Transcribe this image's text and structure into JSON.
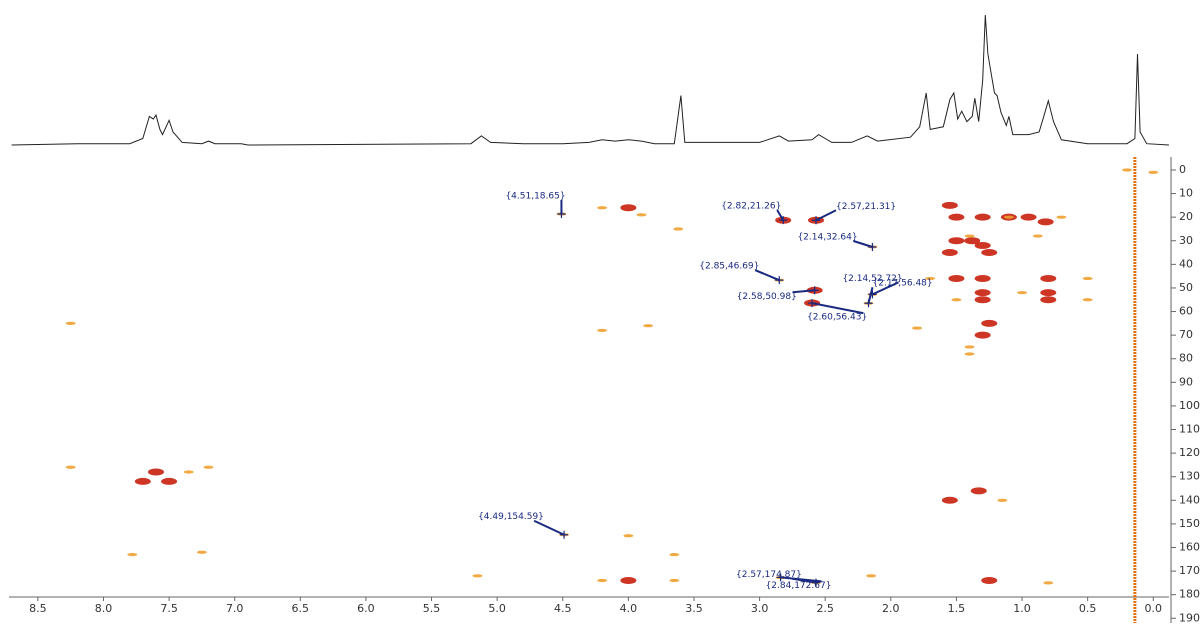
{
  "chart_data": {
    "type": "nmr2d",
    "xlim": [
      8.72,
      -0.12
    ],
    "ylim": [
      -5.5,
      192
    ],
    "xticks": [
      {
        "value": 8.5,
        "label": "8.5"
      },
      {
        "value": 8,
        "label": "8.0"
      },
      7.5,
      {
        "value": 7,
        "label": "7.0"
      },
      6.5,
      {
        "value": 6,
        "label": "6.0"
      },
      5.5,
      {
        "value": 5,
        "label": "5.0"
      },
      4.5,
      {
        "value": 4,
        "label": "4.0"
      },
      3.5,
      {
        "value": 3,
        "label": "3.0"
      },
      2.5,
      {
        "value": 2,
        "label": "2.0"
      },
      1.5,
      {
        "value": 1,
        "label": "1.0"
      },
      0.5,
      {
        "value": 0,
        "label": "0.0"
      }
    ],
    "yticks": [
      0,
      10,
      20,
      30,
      40,
      50,
      60,
      70,
      80,
      90,
      100,
      110,
      120,
      130,
      140,
      150,
      160,
      170,
      180,
      190
    ],
    "trace": {
      "color": "#222222",
      "x": [
        8.7,
        8.2,
        7.8,
        7.7,
        7.65,
        7.62,
        7.6,
        7.57,
        7.55,
        7.5,
        7.47,
        7.4,
        7.25,
        7.2,
        7.15,
        6.95,
        6.9,
        5.2,
        5.12,
        5.05,
        4.8,
        4.5,
        4.3,
        4.2,
        4.1,
        4.0,
        3.9,
        3.8,
        3.65,
        3.6,
        3.57,
        3.0,
        2.85,
        2.78,
        2.6,
        2.55,
        2.45,
        2.3,
        2.18,
        2.1,
        1.85,
        1.78,
        1.73,
        1.7,
        1.6,
        1.55,
        1.52,
        1.49,
        1.46,
        1.42,
        1.38,
        1.36,
        1.33,
        1.3,
        1.28,
        1.26,
        1.24,
        1.21,
        1.19,
        1.16,
        1.12,
        1.1,
        1.07,
        0.95,
        0.87,
        0.84,
        0.8,
        0.76,
        0.7,
        0.5,
        0.2,
        0.14,
        0.12,
        0.1,
        0.05,
        -0.12
      ],
      "values": [
        0,
        1,
        1,
        5,
        22,
        20,
        23,
        12,
        8,
        19,
        10,
        2,
        1,
        3,
        1,
        1,
        0,
        1,
        7,
        2,
        1,
        1,
        2,
        4,
        3,
        4,
        3,
        1,
        1,
        38,
        2,
        2,
        7,
        3,
        4,
        8,
        2,
        2,
        7,
        3,
        6,
        14,
        40,
        12,
        14,
        35,
        40,
        20,
        26,
        18,
        22,
        36,
        18,
        50,
        100,
        70,
        58,
        40,
        38,
        25,
        15,
        22,
        8,
        8,
        10,
        20,
        34,
        18,
        4,
        1,
        1,
        5,
        70,
        10,
        1,
        0
      ]
    },
    "vertical_line": {
      "x": 0.14,
      "color": "#e07010"
    },
    "series": [
      {
        "color": "#c8200c",
        "x": [
          2.82,
          2.57,
          4.0,
          1.55,
          1.3,
          1.5,
          1.1,
          0.95,
          0.82,
          1.5,
          1.38,
          1.3,
          1.25,
          1.5,
          1.3,
          0.8,
          1.3,
          1.3,
          0.8,
          0.8,
          1.25,
          1.3,
          7.6,
          7.7,
          7.5,
          1.55,
          1.33,
          4.0,
          1.25,
          2.58,
          2.6,
          1.55
        ],
        "values": [
          21.3,
          21.3,
          16,
          15,
          20,
          20,
          20,
          20,
          22,
          30,
          30,
          32,
          35,
          46,
          46,
          46,
          52,
          55,
          52,
          55,
          65,
          70,
          128,
          132,
          132,
          140,
          136,
          174,
          174,
          51,
          56.4,
          35
        ]
      },
      {
        "color": "#f0a030",
        "x": [
          2.14,
          4.2,
          3.9,
          1.4,
          0.7,
          0.88,
          1.7,
          1.0,
          0.5,
          0.5,
          1.5,
          1.4,
          1.15,
          4.2,
          3.85,
          7.35,
          7.2,
          8.25,
          1.1,
          4.49,
          4.0,
          4.2,
          3.65,
          2.84,
          2.57,
          2.15,
          3.62,
          3.65,
          0.2,
          0.0,
          4.51,
          2.85,
          2.17,
          2.14,
          8.25,
          7.78,
          7.25,
          5.15,
          0.8,
          1.8,
          1.4
        ],
        "values": [
          32.6,
          16,
          19,
          28,
          20,
          28,
          46,
          52,
          46,
          55,
          55,
          75,
          140,
          68,
          66,
          128,
          126,
          65,
          20,
          154.6,
          155,
          174,
          174,
          172.7,
          174.9,
          172,
          25,
          163,
          0,
          1,
          18.65,
          46.7,
          56.5,
          52.7,
          126,
          163,
          162,
          172,
          175,
          67,
          78
        ]
      }
    ],
    "annotations": [
      {
        "label": "{4.51,18.65}",
        "x": 4.51,
        "y": 18.65
      },
      {
        "label": "{2.82,21.26}",
        "x": 2.82,
        "y": 21.26
      },
      {
        "label": "{2.57,21.31}",
        "x": 2.57,
        "y": 21.31
      },
      {
        "label": "{2.14,32.64}",
        "x": 2.14,
        "y": 32.64
      },
      {
        "label": "{2.85,46.69}",
        "x": 2.85,
        "y": 46.69
      },
      {
        "label": "{2.14,52.72}",
        "x": 2.14,
        "y": 52.72
      },
      {
        "label": "{2.17,56.48}",
        "x": 2.17,
        "y": 56.48
      },
      {
        "label": "{2.58,50.98}",
        "x": 2.58,
        "y": 50.98
      },
      {
        "label": "{2.60,56.43}",
        "x": 2.6,
        "y": 56.43
      },
      {
        "label": "{4.49,154.59}",
        "x": 4.49,
        "y": 154.59
      },
      {
        "label": "{2.57,174.87}",
        "x": 2.57,
        "y": 174.87
      },
      {
        "label": "{2.84,172.67}",
        "x": 2.84,
        "y": 172.67
      }
    ]
  }
}
